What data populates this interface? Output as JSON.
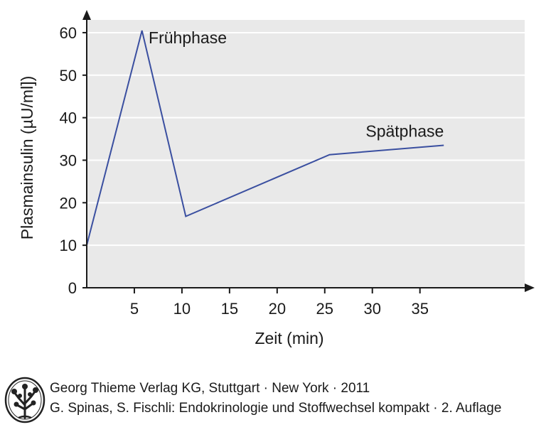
{
  "chart_data": {
    "type": "line",
    "title": "",
    "xlabel": "Zeit (min)",
    "ylabel": "Plasmainsulin (µU/ml])",
    "xlim": [
      0,
      46
    ],
    "ylim": [
      0,
      63
    ],
    "x_ticks": [
      5,
      10,
      15,
      20,
      25,
      30,
      35
    ],
    "y_ticks": [
      0,
      10,
      20,
      30,
      40,
      50,
      60
    ],
    "grid": "horizontal",
    "series": [
      {
        "x": [
          0,
          5.8,
          10.4,
          25.5,
          37.5
        ],
        "y": [
          10,
          60.5,
          16.8,
          31.3,
          33.5
        ],
        "color": "#3a4fa0"
      }
    ],
    "annotations": [
      {
        "text": "Frühphase",
        "x": 6.5,
        "y": 57.5
      },
      {
        "text": "Spätphase",
        "x": 29.3,
        "y": 35.5
      }
    ],
    "background": "#e9e9e9"
  },
  "footer": {
    "line1": "Georg Thieme Verlag KG, Stuttgart · New York · 2011",
    "line2": "G. Spinas, S. Fischli: Endokrinologie und Stoffwechsel kompakt · 2. Auflage",
    "logo_icon": "tree-logo-icon"
  }
}
